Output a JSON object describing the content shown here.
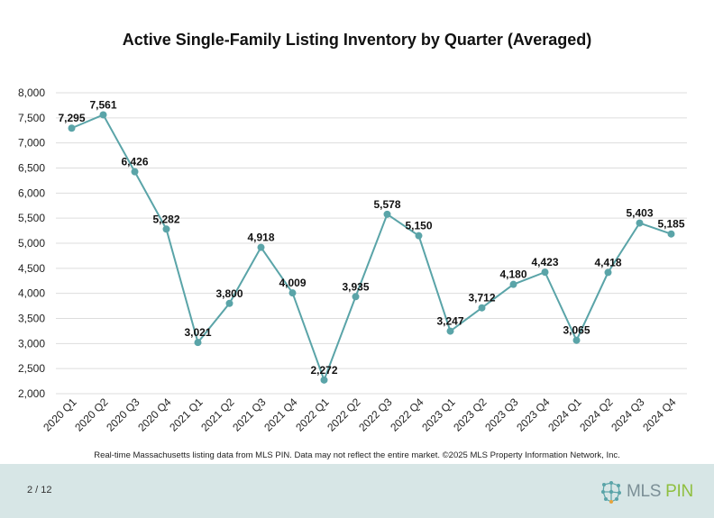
{
  "chart_data": {
    "type": "line",
    "title": "Active Single-Family Listing Inventory by Quarter (Averaged)",
    "xlabel": "",
    "ylabel": "",
    "ylim": [
      2000,
      8000
    ],
    "y_ticks": [
      "2,000",
      "2,500",
      "3,000",
      "3,500",
      "4,000",
      "4,500",
      "5,000",
      "5,500",
      "6,000",
      "6,500",
      "7,000",
      "7,500",
      "8,000"
    ],
    "grid": true,
    "legend": "none",
    "categories": [
      "2020 Q1",
      "2020 Q2",
      "2020 Q3",
      "2020 Q4",
      "2021 Q1",
      "2021 Q2",
      "2021 Q3",
      "2021 Q4",
      "2022 Q1",
      "2022 Q2",
      "2022 Q3",
      "2022 Q4",
      "2023 Q1",
      "2023 Q2",
      "2023 Q3",
      "2023 Q4",
      "2024 Q1",
      "2024 Q2",
      "2024 Q3",
      "2024 Q4"
    ],
    "series": [
      {
        "values": [
          7295,
          7561,
          6426,
          5282,
          3021,
          3800,
          4918,
          4009,
          2272,
          3935,
          5578,
          5150,
          3247,
          3712,
          4180,
          4423,
          3065,
          4418,
          5403,
          5185
        ],
        "data_labels": [
          "7,295",
          "7,561",
          "6,426",
          "5,282",
          "3,021",
          "3,800",
          "4,918",
          "4,009",
          "2,272",
          "3,935",
          "5,578",
          "5,150",
          "3,247",
          "3,712",
          "4,180",
          "4,423",
          "3,065",
          "4,418",
          "5,403",
          "5,185"
        ],
        "color": "#5aa4a8"
      }
    ]
  },
  "source_note": "Real-time Massachusetts listing data from MLS PIN. Data may not reflect the entire market. ©2025 MLS Property Information Network, Inc.",
  "footer": {
    "page_number": "2 / 12",
    "logo_text_mls": "MLS",
    "logo_text_pin": "PIN"
  },
  "colors": {
    "line": "#5aa4a8",
    "grid": "#dddddd",
    "footer_bg": "#d7e6e6",
    "logo_gray": "#7b8f96",
    "logo_green": "#8fbf3f"
  },
  "icons": {
    "logo": "mls-pin-network-icon"
  }
}
